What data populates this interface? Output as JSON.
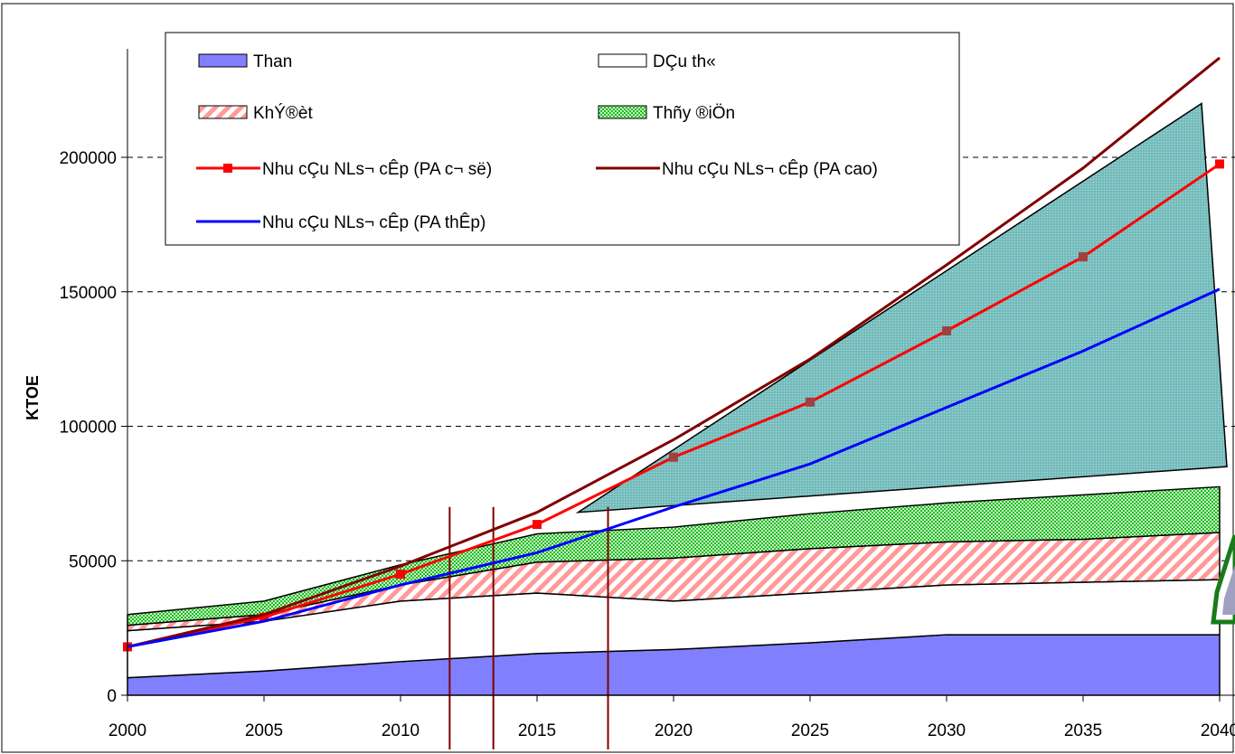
{
  "chart_data": {
    "type": "area",
    "title": "",
    "xlabel": "",
    "ylabel": "KTOE",
    "x": [
      2000,
      2005,
      2010,
      2015,
      2020,
      2025,
      2030,
      2035,
      2040
    ],
    "x_ticks": [
      "2000",
      "2005",
      "2010",
      "2015",
      "2020",
      "2025",
      "2030",
      "2035",
      "2040"
    ],
    "y_ticks": [
      "0",
      "50000",
      "100000",
      "150000",
      "200000"
    ],
    "xlim": [
      2000,
      2040
    ],
    "ylim": [
      0,
      230000
    ],
    "grid": "horizontal dashed",
    "legend_position": "top",
    "stacked_areas": [
      {
        "name": "Than",
        "color": "#8080ff",
        "pattern": "solid",
        "values": [
          6500,
          9000,
          12500,
          15500,
          17000,
          19500,
          22500,
          22500,
          22500
        ]
      },
      {
        "name": "DÇu th«",
        "color": "#ffffff",
        "pattern": "solid",
        "values": [
          17500,
          18500,
          22500,
          22500,
          18000,
          18500,
          18500,
          19500,
          20500
        ]
      },
      {
        "name": "KhÝ®èt",
        "color": "#ff9090",
        "pattern": "diagonal-hatch",
        "values": [
          2000,
          2500,
          6000,
          11500,
          16000,
          16500,
          16000,
          16000,
          17500
        ]
      },
      {
        "name": "Thñy ®iÖn",
        "color": "#33cc33",
        "pattern": "checker",
        "values": [
          4000,
          5000,
          7500,
          10500,
          11500,
          13000,
          14500,
          16500,
          17000
        ]
      }
    ],
    "unnamed_area": {
      "color": "#6fb8b8",
      "x": [
        2016.5,
        2040
      ],
      "lower": [
        68000,
        85000
      ],
      "upper": [
        68000,
        220000
      ]
    },
    "vertical_lines": [
      2011.8,
      2013.4,
      2017.6
    ],
    "lines": [
      {
        "name": "Nhu cÇu NLs¬ cÊp (PA c¬ së)",
        "color": "#ff0000",
        "marker": "square",
        "values": [
          18000,
          29000,
          45000,
          63500,
          88500,
          109000,
          135500,
          163000,
          197500
        ]
      },
      {
        "name": "Nhu cÇu NLs¬ cÊp (PA cao)",
        "color": "#800000",
        "marker": "none",
        "values": [
          18000,
          30000,
          48000,
          68000,
          95000,
          125000,
          160000,
          196000,
          237000
        ]
      },
      {
        "name": "Nhu cÇu NLs¬ cÊp (PA thÊp)",
        "color": "#0000ff",
        "marker": "none",
        "values": [
          18000,
          27500,
          41000,
          53000,
          70000,
          86000,
          107000,
          128000,
          151000
        ]
      }
    ]
  }
}
